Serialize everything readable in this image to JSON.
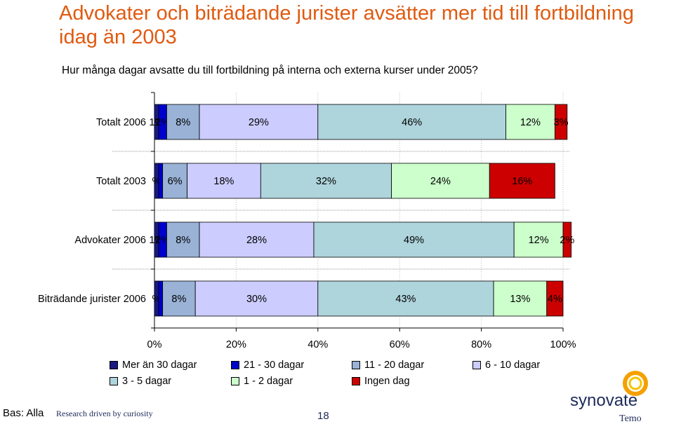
{
  "header": {
    "title": "Advokater och biträdande jurister avsätter mer tid till fortbildning idag än 2003",
    "question": "Hur många dagar avsatte du till fortbildning på interna och externa kurser under 2005?"
  },
  "chart_data": {
    "type": "bar",
    "orientation": "horizontal-stacked-100",
    "categories": [
      "Totalt 2006",
      "Totalt 2003",
      "Advokater 2006",
      "Biträdande jurister 2006"
    ],
    "series": [
      {
        "name": "Mer än 30 dagar",
        "color": "#1a1a80",
        "values": [
          1,
          1,
          1,
          1
        ],
        "labels": [
          "1%",
          "%",
          "1%",
          "%"
        ]
      },
      {
        "name": "21 - 30 dagar",
        "color": "#0000cc",
        "values": [
          2,
          1,
          2,
          1
        ],
        "labels": [
          "2%",
          "",
          "2%",
          ""
        ]
      },
      {
        "name": "11 - 20 dagar",
        "color": "#99b2d6",
        "values": [
          8,
          6,
          8,
          8
        ],
        "labels": [
          "8%",
          "6%",
          "8%",
          "8%"
        ]
      },
      {
        "name": "6 - 10 dagar",
        "color": "#ccccff",
        "values": [
          29,
          18,
          28,
          30
        ],
        "labels": [
          "29%",
          "18%",
          "28%",
          "30%"
        ]
      },
      {
        "name": "3 - 5 dagar",
        "color": "#aed4dc",
        "values": [
          46,
          32,
          49,
          43
        ],
        "labels": [
          "46%",
          "32%",
          "49%",
          "43%"
        ]
      },
      {
        "name": "1 - 2 dagar",
        "color": "#ccffcc",
        "values": [
          12,
          24,
          12,
          13
        ],
        "labels": [
          "12%",
          "24%",
          "12%",
          "13%"
        ]
      },
      {
        "name": "Ingen dag",
        "color": "#cc0000",
        "values": [
          3,
          16,
          2,
          4
        ],
        "labels": [
          "3%",
          "16%",
          "2%",
          "4%"
        ]
      }
    ],
    "xlim": [
      0,
      100
    ],
    "x_ticks": [
      "0%",
      "20%",
      "40%",
      "60%",
      "80%",
      "100%"
    ],
    "legend_position": "bottom"
  },
  "footer": {
    "bas": "Bas: Alla",
    "tagline": "Research driven by curiosity",
    "page_number": "18",
    "logo_brand": "synovate",
    "logo_sub": "Temo",
    "logo_color": "#1e2a5a",
    "logo_ring_color": "#f5a000"
  }
}
